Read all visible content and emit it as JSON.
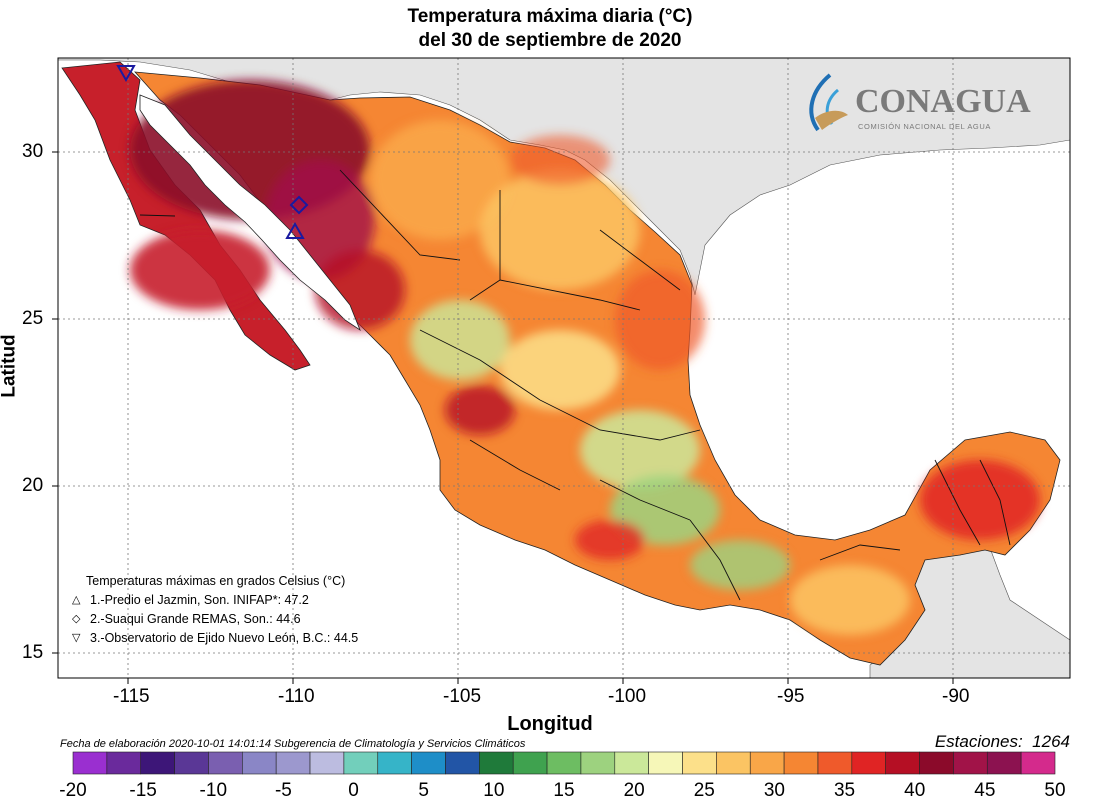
{
  "title": {
    "line1": "Temperatura máxima diaria (°C)",
    "line2": "del 30 de septiembre de 2020"
  },
  "axes": {
    "xlabel": "Longitud",
    "ylabel": "Latitud",
    "xticks": [
      "-115",
      "-110",
      "-105",
      "-100",
      "-95",
      "-90"
    ],
    "yticks": [
      "30",
      "25",
      "20",
      "15"
    ]
  },
  "logo": {
    "name": "CONAGUA",
    "subtitle": "COMISIÓN NACIONAL DEL AGUA"
  },
  "legend": {
    "heading": "Temperaturas máximas en grados Celsius (°C)",
    "items": [
      {
        "symbol": "triangle-up",
        "text": "1.-Predio el Jazmin, Son. INIFAP*: 47.2"
      },
      {
        "symbol": "diamond",
        "text": "2.-Suaqui Grande REMAS, Son.: 44.6"
      },
      {
        "symbol": "triangle-down",
        "text": "3.-Observatorio de Ejido Nuevo León, B.C.: 44.5"
      }
    ]
  },
  "footer": {
    "fecha": "Fecha de elaboración 2020-10-01 14:01:14 Subgerencia de Climatología y Servicios Climáticos",
    "estaciones_label": "Estaciones:",
    "estaciones_value": "1264"
  },
  "colorbar": {
    "labels": [
      "-20",
      "-15",
      "-10",
      "-5",
      "0",
      "5",
      "10",
      "15",
      "20",
      "25",
      "30",
      "35",
      "40",
      "45",
      "50"
    ],
    "colors": [
      "#9a2fd0",
      "#6a2a9c",
      "#3d1678",
      "#5a3796",
      "#7a5fb0",
      "#8a86c6",
      "#9c98ce",
      "#bcbce0",
      "#72cfbb",
      "#36b4c8",
      "#1e8ec8",
      "#2255a6",
      "#1f7a3a",
      "#3fa24f",
      "#6dbd62",
      "#9dd27f",
      "#cbe89a",
      "#f6f7b8",
      "#fce08a",
      "#fbc463",
      "#f9a648",
      "#f58633",
      "#ef5a2b",
      "#e02424",
      "#b50f24",
      "#8b0a2a",
      "#a11348",
      "#8c1250",
      "#d42a8c"
    ]
  },
  "colors": {
    "land_other": "#e4e4e4",
    "ocean": "#ffffff"
  }
}
